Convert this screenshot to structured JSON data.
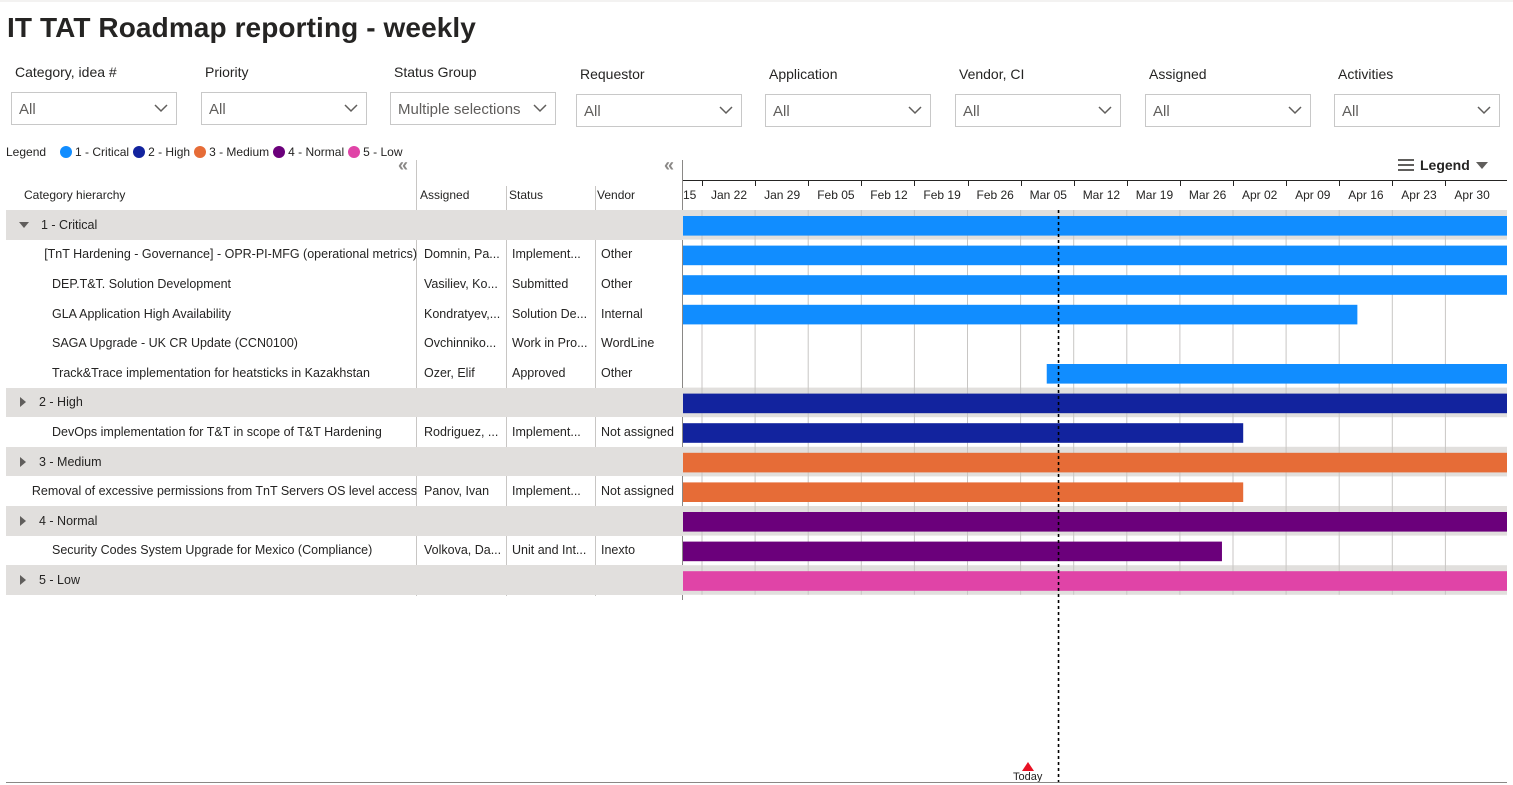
{
  "title": "IT TAT Roadmap reporting - weekly",
  "slicers": [
    {
      "label": "Category, idea #",
      "value": "All"
    },
    {
      "label": "Priority",
      "value": "All"
    },
    {
      "label": "Status Group",
      "value": "Multiple selections"
    },
    {
      "label": "Requestor",
      "value": "All"
    },
    {
      "label": "Application",
      "value": "All"
    },
    {
      "label": "Vendor, CI",
      "value": "All"
    },
    {
      "label": "Assigned",
      "value": "All"
    },
    {
      "label": "Activities",
      "value": "All"
    }
  ],
  "legend": {
    "title": "Legend",
    "items": [
      {
        "label": "1 - Critical",
        "color": "#118dff"
      },
      {
        "label": "2 - High",
        "color": "#12239e"
      },
      {
        "label": "3 - Medium",
        "color": "#e66c37"
      },
      {
        "label": "4 - Normal",
        "color": "#6b007b"
      },
      {
        "label": "5 - Low",
        "color": "#e044a7"
      }
    ]
  },
  "gantt": {
    "legend_button": "Legend",
    "collapse_glyph": "«",
    "columns": {
      "category": "Category hierarchy",
      "assigned": "Assigned",
      "status": "Status",
      "vendor": "Vendor"
    },
    "ticks": [
      "15",
      "Jan 22",
      "Jan 29",
      "Feb 05",
      "Feb 12",
      "Feb 19",
      "Feb 26",
      "Mar 05",
      "Mar 12",
      "Mar 19",
      "Mar 26",
      "Apr 02",
      "Apr 09",
      "Apr 16",
      "Apr 23",
      "Apr 30"
    ],
    "today_label": "Today",
    "today_date": "Mar 03",
    "rows": [
      {
        "type": "group",
        "expanded": true,
        "name": "1 - Critical",
        "assigned": "",
        "status": "",
        "vendor": "",
        "color": "#118dff",
        "start_week": 0,
        "end_week": "open"
      },
      {
        "type": "item",
        "name": "[TnT Hardening - Governance] - OPR-PI-MFG (operational metrics)",
        "assigned": "Domnin, Pa...",
        "status": "Implement...",
        "vendor": "Other",
        "color": "#118dff",
        "start_week": 0,
        "end_week": "open"
      },
      {
        "type": "item",
        "name": "DEP.T&T. Solution Development",
        "assigned": "Vasiliev, Ko...",
        "status": "Submitted",
        "vendor": "Other",
        "color": "#118dff",
        "start_week": 0,
        "end_week": "open"
      },
      {
        "type": "item",
        "name": "GLA Application High Availability",
        "assigned": "Kondratyev,...",
        "status": "Solution De...",
        "vendor": "Internal",
        "color": "#118dff",
        "start_week": 0,
        "end_week": 12.7
      },
      {
        "type": "item",
        "name": "SAGA Upgrade - UK CR Update (CCN0100)",
        "assigned": "Ovchinniko...",
        "status": "Work in Pro...",
        "vendor": "WordLine",
        "color": "#118dff",
        "start_week": null,
        "end_week": null
      },
      {
        "type": "item",
        "name": "Track&Trace implementation for heatsticks in Kazakhstan",
        "assigned": "Ozer, Elif",
        "status": "Approved",
        "vendor": "Other",
        "color": "#118dff",
        "start_week": 6.85,
        "end_week": "open"
      },
      {
        "type": "group",
        "expanded": false,
        "name": "2 - High",
        "assigned": "",
        "status": "",
        "vendor": "",
        "color": "#12239e",
        "start_week": 0,
        "end_week": "open"
      },
      {
        "type": "item",
        "name": "DevOps implementation for T&T in scope of T&T Hardening",
        "assigned": "Rodriguez, ...",
        "status": "Implement...",
        "vendor": "Not assigned",
        "color": "#12239e",
        "start_week": 0,
        "end_week": 10.55
      },
      {
        "type": "group",
        "expanded": false,
        "name": "3 - Medium",
        "assigned": "",
        "status": "",
        "vendor": "",
        "color": "#e66c37",
        "start_week": 0,
        "end_week": "open"
      },
      {
        "type": "item",
        "name": "Removal of excessive permissions from TnT Servers OS level access",
        "assigned": "Panov, Ivan",
        "status": "Implement...",
        "vendor": "Not assigned",
        "color": "#e66c37",
        "start_week": 0,
        "end_week": 10.55
      },
      {
        "type": "group",
        "expanded": false,
        "name": "4 - Normal",
        "assigned": "",
        "status": "",
        "vendor": "",
        "color": "#6b007b",
        "start_week": 0,
        "end_week": "open"
      },
      {
        "type": "item",
        "name": "Security Codes System Upgrade for Mexico (Compliance)",
        "assigned": "Volkova, Da...",
        "status": "Unit and Int...",
        "vendor": "Inexto",
        "color": "#6b007b",
        "start_week": 0,
        "end_week": 10.15
      },
      {
        "type": "group",
        "expanded": false,
        "name": "5 - Low",
        "assigned": "",
        "status": "",
        "vendor": "",
        "color": "#e044a7",
        "start_week": 0,
        "end_week": "open"
      }
    ]
  }
}
